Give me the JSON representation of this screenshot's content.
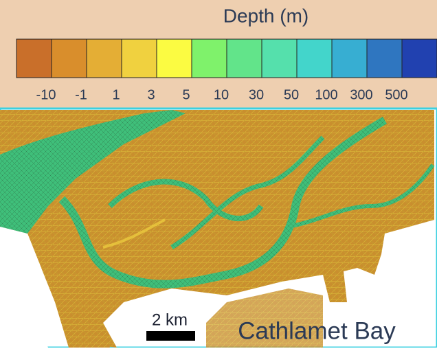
{
  "legend": {
    "title": "Depth (m)",
    "ticks": [
      -10,
      -1,
      1,
      3,
      5,
      10,
      30,
      50,
      100,
      300,
      500
    ],
    "colors": [
      "#c96f2a",
      "#d98e2c",
      "#e4ae35",
      "#f0d13f",
      "#fbfb42",
      "#7ff26b",
      "#62e48a",
      "#55e0ac",
      "#43d5cb",
      "#37aed2",
      "#2f76c0",
      "#2141b0"
    ]
  },
  "map": {
    "scale_label": "2 km",
    "place_label": "Cathlamet Bay"
  }
}
